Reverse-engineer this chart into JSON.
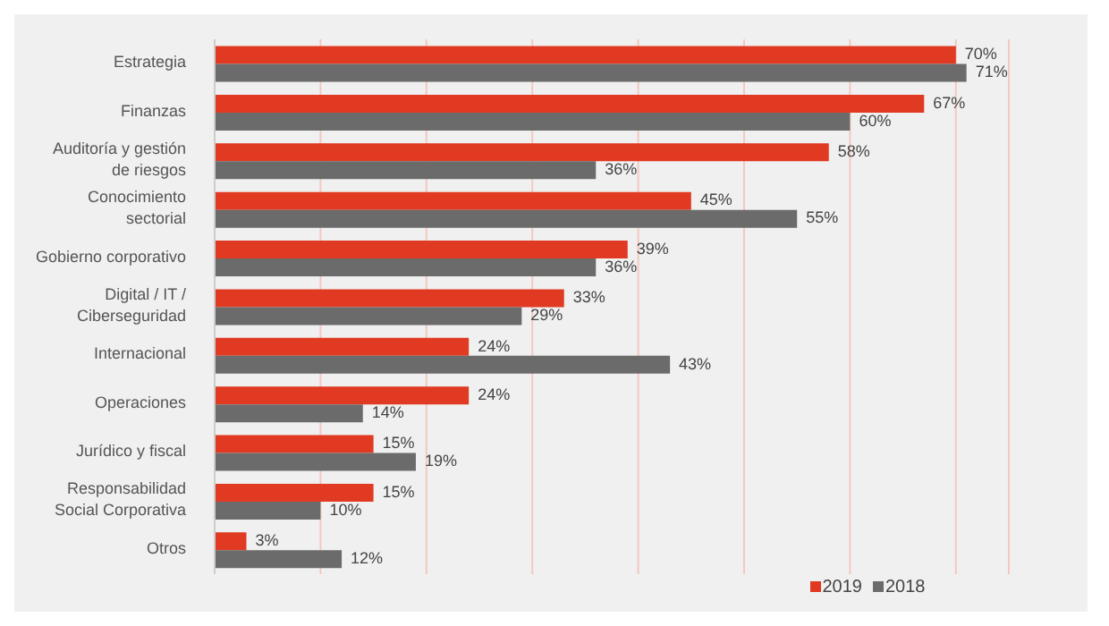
{
  "chart_data": {
    "type": "bar",
    "orientation": "horizontal",
    "categories": [
      "Estrategia",
      "Finanzas",
      "Auditoría y gestión de riesgos",
      "Conocimiento sectorial",
      "Gobierno corporativo",
      "Digital / IT / Ciberseguridad",
      "Internacional",
      "Operaciones",
      "Jurídico y fiscal",
      "Responsabilidad Social Corporativa",
      "Otros"
    ],
    "series": [
      {
        "name": "2019",
        "color": "#e03a22",
        "values": [
          70,
          67,
          58,
          45,
          39,
          33,
          24,
          24,
          15,
          15,
          3
        ],
        "value_labels": [
          "70%",
          "67%",
          "58%",
          "45%",
          "39%",
          "33%",
          "24%",
          "24%",
          "15%",
          "15%",
          "3%"
        ]
      },
      {
        "name": "2018",
        "color": "#6b6b6b",
        "values": [
          71,
          60,
          36,
          55,
          36,
          29,
          43,
          14,
          19,
          10,
          12
        ],
        "value_labels": [
          "71%",
          "60%",
          "36%",
          "55%",
          "36%",
          "29%",
          "43%",
          "14%",
          "19%",
          "10%",
          "12%"
        ]
      }
    ],
    "xlim": [
      0,
      75
    ],
    "xticks": [
      {
        "value": 0,
        "label": null
      },
      {
        "value": 10,
        "label": null
      },
      {
        "value": 20,
        "label": null
      },
      {
        "value": 30,
        "label": null
      },
      {
        "value": 40,
        "label": null
      },
      {
        "value": 50,
        "label": null
      },
      {
        "value": 60,
        "label": null
      },
      {
        "value": 70,
        "label": null
      }
    ],
    "tick_labels": "y",
    "grid": "x",
    "legend": "bottom"
  }
}
